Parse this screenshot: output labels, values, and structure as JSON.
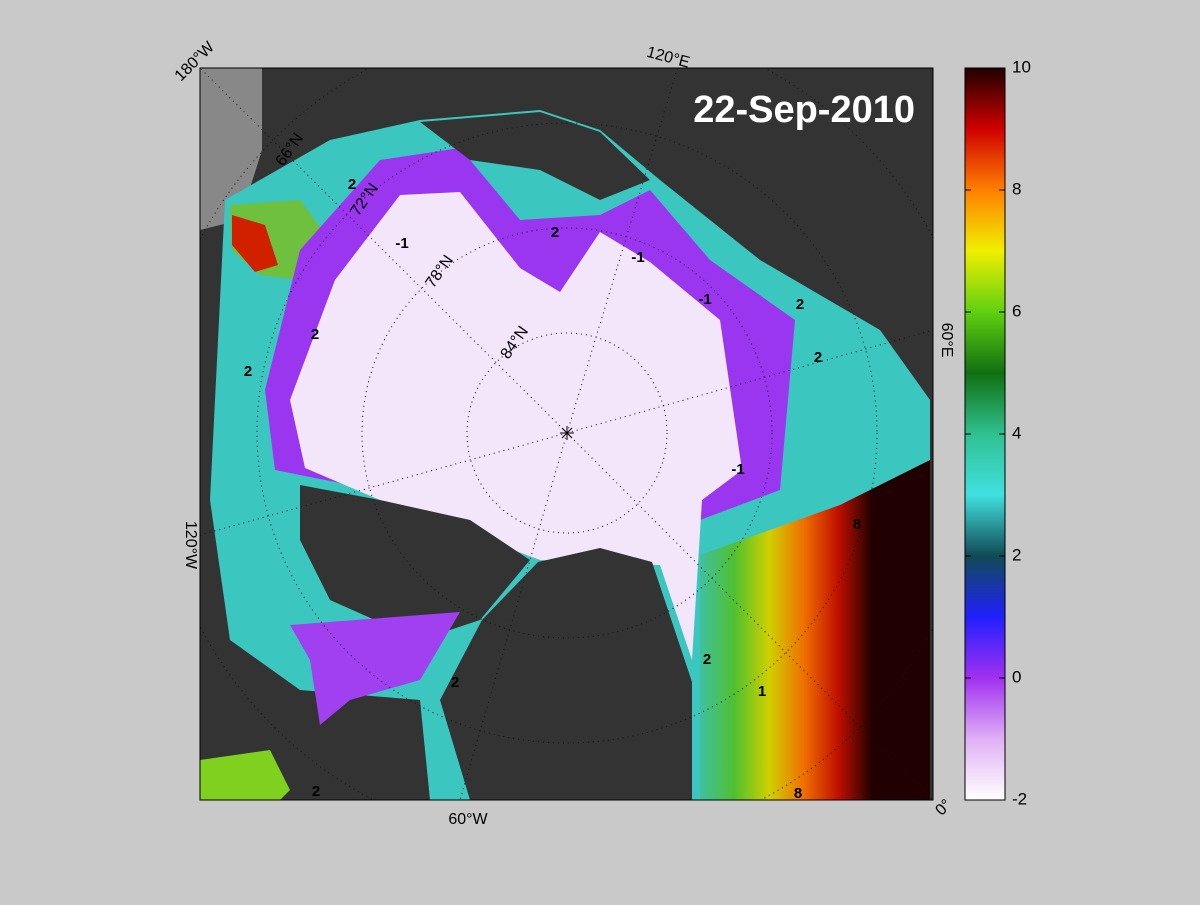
{
  "map": {
    "date": "22-Sep-2010",
    "longitude_labels": [
      "180°W",
      "120°E",
      "60°E",
      "0°",
      "60°W",
      "120°W"
    ],
    "latitude_labels": [
      "66°N",
      "72°N",
      "78°N",
      "84°N"
    ],
    "contour_labels": [
      "2",
      "2",
      "2",
      "2",
      "-1",
      "-1",
      "-1",
      "2",
      "2",
      "8",
      "8",
      "1",
      "2",
      "2",
      "-1",
      "2"
    ]
  },
  "colorbar": {
    "ylim": [
      -2,
      10
    ],
    "yticks": [
      -2,
      0,
      2,
      4,
      6,
      8,
      10
    ]
  }
}
